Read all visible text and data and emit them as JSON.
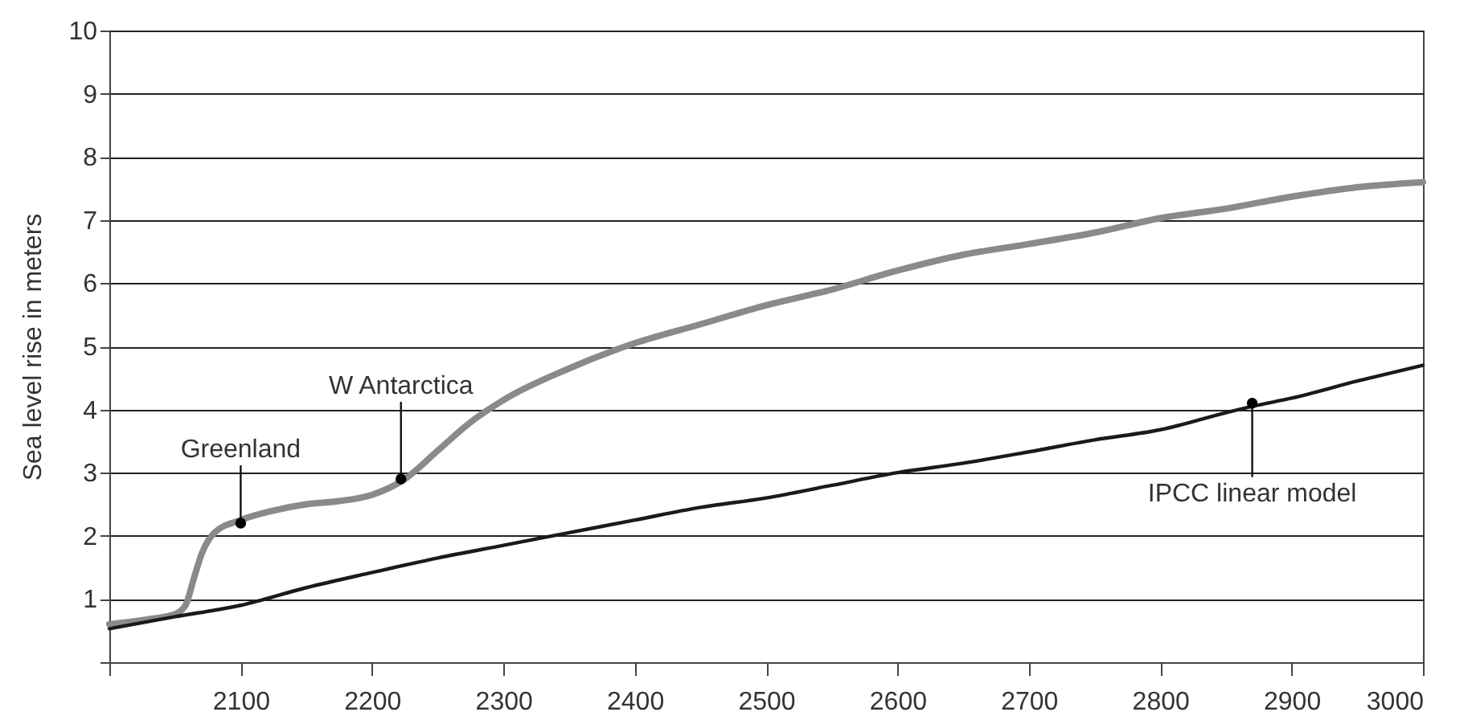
{
  "chart_data": {
    "type": "line",
    "ylabel": "Sea level rise in meters",
    "xlim": [
      2000,
      3000
    ],
    "ylim": [
      0,
      10
    ],
    "xticks": [
      {
        "value": 2000,
        "label": null
      },
      2100,
      2200,
      2300,
      2400,
      2500,
      2600,
      2700,
      2800,
      2900,
      3000
    ],
    "yticks": [
      {
        "value": 0,
        "label": null
      },
      1,
      2,
      3,
      4,
      5,
      6,
      7,
      8,
      9,
      10
    ],
    "grid": "y",
    "marker": "none",
    "line_style": "solid",
    "series": [
      {
        "color": "#8a8a8a",
        "x": [
          2000,
          2030,
          2050,
          2058,
          2064,
          2070,
          2080,
          2100,
          2125,
          2150,
          2175,
          2200,
          2225,
          2250,
          2275,
          2300,
          2350,
          2400,
          2450,
          2500,
          2550,
          2600,
          2650,
          2700,
          2750,
          2800,
          2850,
          2900,
          2950,
          3000
        ],
        "values": [
          0.6,
          0.68,
          0.76,
          0.9,
          1.3,
          1.7,
          2.05,
          2.25,
          2.4,
          2.5,
          2.55,
          2.65,
          2.9,
          3.35,
          3.8,
          4.15,
          4.65,
          5.05,
          5.35,
          5.65,
          5.9,
          6.2,
          6.45,
          6.62,
          6.8,
          7.03,
          7.18,
          7.37,
          7.52,
          7.6
        ]
      },
      {
        "color": "#1a1a1a",
        "x": [
          2000,
          2050,
          2100,
          2150,
          2200,
          2250,
          2300,
          2350,
          2400,
          2450,
          2500,
          2550,
          2600,
          2650,
          2700,
          2750,
          2800,
          2850,
          2870,
          2900,
          2950,
          3000
        ],
        "values": [
          0.53,
          0.72,
          0.9,
          1.18,
          1.42,
          1.65,
          1.85,
          2.05,
          2.25,
          2.45,
          2.6,
          2.8,
          3.0,
          3.15,
          3.33,
          3.52,
          3.68,
          3.95,
          4.05,
          4.18,
          4.45,
          4.7
        ]
      }
    ],
    "annotations": [
      {
        "text": "Greenland",
        "x": 2100,
        "y": 2.2
      },
      {
        "text": "W Antarctica",
        "x": 2222,
        "y": 2.9
      },
      {
        "text": "IPCC linear model",
        "x": 2870,
        "y": 4.1
      }
    ]
  }
}
